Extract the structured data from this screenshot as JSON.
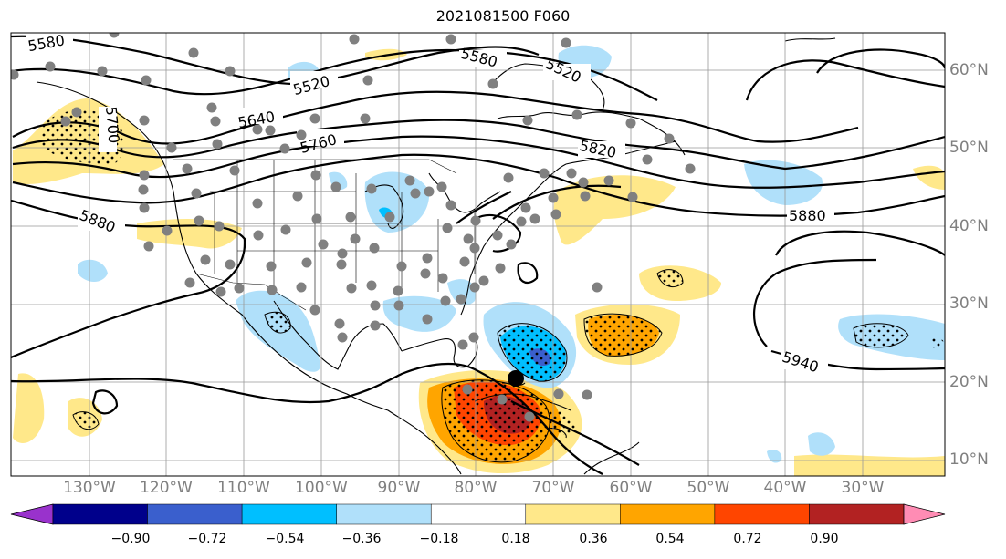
{
  "title": "2021081500 F060",
  "latitude_labels": [
    "60°N",
    "50°N",
    "40°N",
    "30°N",
    "20°N",
    "10°N"
  ],
  "longitude_labels": [
    "130°W",
    "120°W",
    "110°W",
    "100°W",
    "90°W",
    "80°W",
    "70°W",
    "60°W",
    "50°W",
    "40°W",
    "30°W"
  ],
  "contour_labels": [
    "5580",
    "5580",
    "5520",
    "5520",
    "5700",
    "5640",
    "5760",
    "5820",
    "5880",
    "5880",
    "5940"
  ],
  "colorbar": {
    "tick_labels": [
      "−0.90",
      "−0.72",
      "−0.54",
      "−0.36",
      "−0.18",
      "0.18",
      "0.36",
      "0.54",
      "0.72",
      "0.90"
    ],
    "colors": [
      "#9932cc",
      "#00008b",
      "#3a5fcd",
      "#00bfff",
      "#b0e0fa",
      "#ffffff",
      "#ffe88a",
      "#ffa500",
      "#ff4500",
      "#b22222",
      "#ff8cb4"
    ]
  },
  "colors": {
    "light_blue": "#b0e0fa",
    "deep_sky_blue": "#00bfff",
    "royal_blue": "#3a5fcd",
    "light_yellow": "#ffe88a",
    "orange": "#ffa500",
    "orange_red": "#ff4500",
    "firebrick": "#b22222",
    "station_dot": "#808080"
  }
}
